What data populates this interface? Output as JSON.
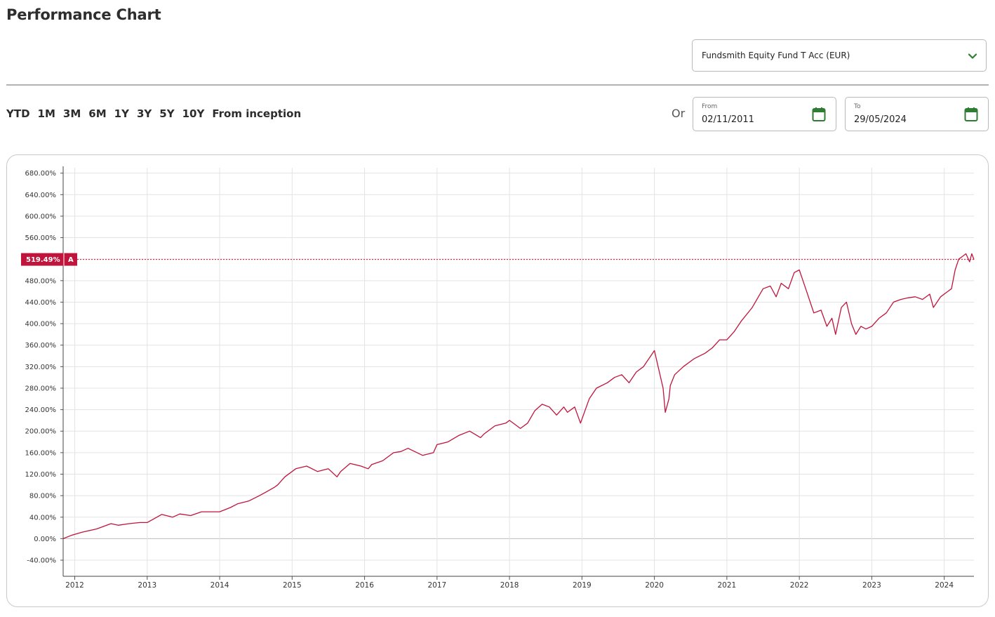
{
  "page": {
    "title": "Performance Chart"
  },
  "fund_select": {
    "value": "Fundsmith Equity Fund T Acc (EUR)",
    "icon": "chevron-down-icon"
  },
  "periods": [
    "YTD",
    "1M",
    "3M",
    "6M",
    "1Y",
    "3Y",
    "5Y",
    "10Y",
    "From inception"
  ],
  "date_range": {
    "or_label": "Or",
    "from_caption": "From",
    "from_value": "02/11/2011",
    "to_caption": "To",
    "to_value": "29/05/2024",
    "icon": "calendar-icon"
  },
  "colors": {
    "accent": "#2f7d32",
    "series": "#c0143c",
    "grid": "#e3e3e3"
  },
  "chart_data": {
    "type": "line",
    "xlabel": "",
    "ylabel": "",
    "xlim": [
      2011.84,
      2024.41
    ],
    "ylim": [
      -70,
      690
    ],
    "y_ticks": [
      680,
      640,
      600,
      560,
      520,
      480,
      440,
      400,
      360,
      320,
      280,
      240,
      200,
      160,
      120,
      80,
      40,
      0,
      -40
    ],
    "y_tick_labels": [
      "680.00%",
      "640.00%",
      "600.00%",
      "560.00%",
      "",
      "480.00%",
      "440.00%",
      "400.00%",
      "360.00%",
      "320.00%",
      "280.00%",
      "240.00%",
      "200.00%",
      "160.00%",
      "120.00%",
      "80.00%",
      "40.00%",
      "0.00%",
      "-40.00%"
    ],
    "x_ticks": [
      2012,
      2013,
      2014,
      2015,
      2016,
      2017,
      2018,
      2019,
      2020,
      2021,
      2022,
      2023,
      2024
    ],
    "x_tick_labels": [
      "2012",
      "2013",
      "2014",
      "2015",
      "2016",
      "2017",
      "2018",
      "2019",
      "2020",
      "2021",
      "2022",
      "2023",
      "2024"
    ],
    "grid": true,
    "current_marker": {
      "value": 519.49,
      "label": "519.49%",
      "series_tag": "A"
    },
    "series": [
      {
        "x": [
          2011.84,
          2011.95,
          2012.1,
          2012.3,
          2012.5,
          2012.6,
          2012.75,
          2012.9,
          2013.0,
          2013.2,
          2013.35,
          2013.45,
          2013.6,
          2013.75,
          2013.85,
          2014.0,
          2014.15,
          2014.25,
          2014.4,
          2014.55,
          2014.75,
          2014.8,
          2014.9,
          2015.05,
          2015.2,
          2015.35,
          2015.5,
          2015.62,
          2015.67,
          2015.8,
          2015.95,
          2016.05,
          2016.1,
          2016.25,
          2016.4,
          2016.5,
          2016.6,
          2016.8,
          2016.95,
          2017.0,
          2017.15,
          2017.3,
          2017.45,
          2017.6,
          2017.65,
          2017.8,
          2017.95,
          2018.0,
          2018.08,
          2018.15,
          2018.25,
          2018.35,
          2018.45,
          2018.55,
          2018.65,
          2018.75,
          2018.8,
          2018.9,
          2018.98,
          2019.1,
          2019.2,
          2019.35,
          2019.45,
          2019.55,
          2019.65,
          2019.75,
          2019.85,
          2020.0,
          2020.12,
          2020.15,
          2020.2,
          2020.22,
          2020.28,
          2020.4,
          2020.55,
          2020.7,
          2020.8,
          2020.9,
          2021.0,
          2021.1,
          2021.2,
          2021.35,
          2021.5,
          2021.6,
          2021.68,
          2021.75,
          2021.85,
          2021.93,
          2022.0,
          2022.1,
          2022.2,
          2022.3,
          2022.38,
          2022.45,
          2022.5,
          2022.58,
          2022.65,
          2022.72,
          2022.78,
          2022.85,
          2022.92,
          2023.0,
          2023.1,
          2023.2,
          2023.3,
          2023.4,
          2023.5,
          2023.6,
          2023.7,
          2023.8,
          2023.85,
          2023.95,
          2024.05,
          2024.1,
          2024.15,
          2024.2,
          2024.25,
          2024.3,
          2024.35,
          2024.38,
          2024.41
        ],
        "values": [
          0,
          6,
          12,
          18,
          28,
          25,
          28,
          30,
          30,
          45,
          40,
          46,
          43,
          50,
          50,
          50,
          58,
          65,
          70,
          80,
          95,
          100,
          115,
          130,
          135,
          125,
          130,
          115,
          125,
          140,
          135,
          130,
          138,
          145,
          160,
          162,
          168,
          155,
          160,
          175,
          180,
          192,
          200,
          188,
          195,
          210,
          215,
          220,
          212,
          205,
          215,
          238,
          250,
          245,
          230,
          245,
          235,
          245,
          215,
          260,
          280,
          290,
          300,
          305,
          290,
          310,
          320,
          350,
          280,
          235,
          260,
          285,
          305,
          320,
          335,
          345,
          355,
          370,
          370,
          385,
          405,
          430,
          465,
          470,
          450,
          475,
          465,
          495,
          500,
          460,
          420,
          425,
          395,
          410,
          380,
          430,
          440,
          400,
          380,
          395,
          390,
          395,
          410,
          420,
          440,
          445,
          448,
          450,
          445,
          455,
          430,
          450,
          460,
          465,
          500,
          520,
          525,
          530,
          515,
          530,
          519.49
        ]
      }
    ]
  }
}
